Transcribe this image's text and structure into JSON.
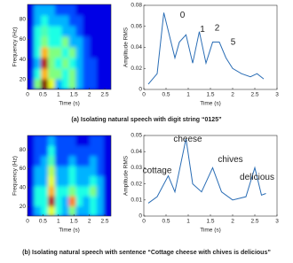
{
  "chart_data": [
    {
      "type": "heatmap",
      "xlabel": "Time (s)",
      "ylabel": "Frequency (Hz)",
      "xlim": [
        0,
        2.7
      ],
      "ylim": [
        10,
        95
      ],
      "xticks": [
        0,
        0.5,
        1,
        1.5,
        2,
        2.5
      ],
      "yticks": [
        20,
        40,
        60,
        80
      ],
      "colormap": "jet",
      "z": [
        [
          0.1,
          0.5,
          1.0,
          0.6,
          0.3,
          0.4,
          0.5,
          0.3,
          0.2,
          0.2,
          0.1,
          0.1
        ],
        [
          0.1,
          0.4,
          0.7,
          0.5,
          0.5,
          0.4,
          0.5,
          0.3,
          0.2,
          0.2,
          0.1,
          0.1
        ],
        [
          0.1,
          0.3,
          0.95,
          0.5,
          0.4,
          0.5,
          0.4,
          0.3,
          0.2,
          0.2,
          0.1,
          0.1
        ],
        [
          0.1,
          0.4,
          0.7,
          0.5,
          0.5,
          0.4,
          0.5,
          0.3,
          0.2,
          0.1,
          0.1,
          0.1
        ],
        [
          0.1,
          0.4,
          0.5,
          0.4,
          0.4,
          0.5,
          0.3,
          0.3,
          0.2,
          0.1,
          0.1,
          0.1
        ],
        [
          0.1,
          0.4,
          0.45,
          0.4,
          0.4,
          0.3,
          0.3,
          0.2,
          0.1,
          0.1,
          0.1,
          0.1
        ],
        [
          0.1,
          0.3,
          0.4,
          0.3,
          0.3,
          0.3,
          0.2,
          0.2,
          0.1,
          0.1,
          0.1,
          0.1
        ],
        [
          0.1,
          0.3,
          0.3,
          0.3,
          0.2,
          0.2,
          0.2,
          0.1,
          0.1,
          0.1,
          0.1,
          0.1
        ]
      ]
    },
    {
      "type": "line",
      "xlabel": "Time (s)",
      "ylabel": "Amplitude RMS",
      "xlim": [
        0,
        3
      ],
      "ylim": [
        0,
        0.08
      ],
      "xticks": [
        0,
        0.5,
        1,
        1.5,
        2,
        2.5,
        3
      ],
      "yticks": [
        0,
        0.02,
        0.04,
        0.06,
        0.08
      ],
      "color": "#2a6db5",
      "x": [
        0.1,
        0.3,
        0.45,
        0.7,
        0.8,
        0.95,
        1.1,
        1.25,
        1.4,
        1.55,
        1.7,
        1.85,
        2.0,
        2.2,
        2.4,
        2.55,
        2.7
      ],
      "values": [
        0.005,
        0.015,
        0.073,
        0.03,
        0.045,
        0.052,
        0.025,
        0.055,
        0.025,
        0.045,
        0.045,
        0.03,
        0.02,
        0.015,
        0.012,
        0.015,
        0.01
      ],
      "annotations": [
        "0",
        "1",
        "2",
        "5"
      ]
    },
    {
      "type": "heatmap",
      "xlabel": "Time (s)",
      "ylabel": "Frequency (Hz)",
      "xlim": [
        0,
        2.7
      ],
      "ylim": [
        10,
        95
      ],
      "xticks": [
        0,
        0.5,
        1,
        1.5,
        2,
        2.5
      ],
      "yticks": [
        20,
        40,
        60,
        80
      ],
      "colormap": "jet",
      "z": [
        [
          0.1,
          0.3,
          0.4,
          0.6,
          0.4,
          0.3,
          0.5,
          0.3,
          0.3,
          0.4,
          0.3,
          0.1
        ],
        [
          0.1,
          0.4,
          0.4,
          0.95,
          0.4,
          0.3,
          0.75,
          0.4,
          0.3,
          0.4,
          0.3,
          0.1
        ],
        [
          0.1,
          0.4,
          0.4,
          0.7,
          0.4,
          0.4,
          0.5,
          0.4,
          0.4,
          0.5,
          0.3,
          0.1
        ],
        [
          0.1,
          0.3,
          0.3,
          0.6,
          0.3,
          0.3,
          0.4,
          0.3,
          0.3,
          0.4,
          0.3,
          0.1
        ],
        [
          0.1,
          0.3,
          0.3,
          0.55,
          0.3,
          0.3,
          0.4,
          0.3,
          0.3,
          0.3,
          0.2,
          0.1
        ],
        [
          0.1,
          0.2,
          0.3,
          0.45,
          0.2,
          0.2,
          0.3,
          0.2,
          0.2,
          0.3,
          0.2,
          0.1
        ],
        [
          0.1,
          0.2,
          0.2,
          0.4,
          0.2,
          0.2,
          0.2,
          0.2,
          0.2,
          0.2,
          0.2,
          0.1
        ],
        [
          0.1,
          0.2,
          0.2,
          0.3,
          0.2,
          0.2,
          0.2,
          0.1,
          0.1,
          0.2,
          0.2,
          0.1
        ]
      ]
    },
    {
      "type": "line",
      "xlabel": "Time (s)",
      "ylabel": "Amplitude RMS",
      "xlim": [
        0,
        3
      ],
      "ylim": [
        0,
        0.05
      ],
      "xticks": [
        0,
        0.5,
        1,
        1.5,
        2,
        2.5,
        3
      ],
      "yticks": [
        0,
        0.01,
        0.02,
        0.03,
        0.04,
        0.05
      ],
      "color": "#2a6db5",
      "x": [
        0.1,
        0.3,
        0.55,
        0.7,
        0.95,
        1.1,
        1.3,
        1.55,
        1.75,
        2.0,
        2.3,
        2.5,
        2.65,
        2.75
      ],
      "values": [
        0.008,
        0.012,
        0.025,
        0.015,
        0.048,
        0.02,
        0.015,
        0.03,
        0.015,
        0.01,
        0.012,
        0.03,
        0.013,
        0.014
      ],
      "annotations": [
        "cheese",
        "cottage",
        "chives",
        "delicious"
      ]
    }
  ],
  "captions": [
    "(a) Isolating natural speech with digit string “0125”",
    "(b) Isolating natural speech with sentence “Cottage cheese with chives is delicious”"
  ]
}
